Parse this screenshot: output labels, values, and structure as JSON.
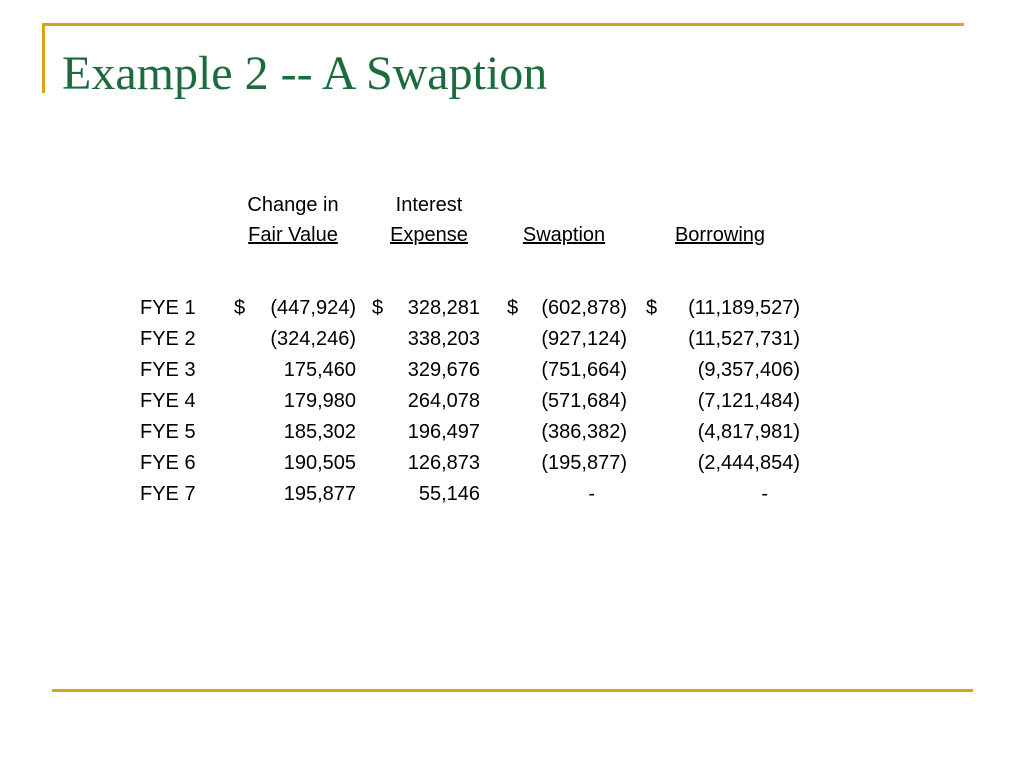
{
  "slide": {
    "title": "Example 2 -- A Swaption"
  },
  "table": {
    "headers": [
      {
        "line1": "Change in",
        "line2": "Fair Value"
      },
      {
        "line1": "Interest",
        "line2": "Expense"
      },
      {
        "line1": "",
        "line2": "Swaption"
      },
      {
        "line1": "",
        "line2": "Borrowing"
      }
    ],
    "currency_symbol": "$",
    "rows": [
      {
        "label": "FYE 1",
        "fair_value": "(447,924)",
        "interest_expense": "328,281",
        "swaption": "(602,878)",
        "borrowing": "(11,189,527)"
      },
      {
        "label": "FYE 2",
        "fair_value": "(324,246)",
        "interest_expense": "338,203",
        "swaption": "(927,124)",
        "borrowing": "(11,527,731)"
      },
      {
        "label": "FYE 3",
        "fair_value": "175,460",
        "interest_expense": "329,676",
        "swaption": "(751,664)",
        "borrowing": "(9,357,406)"
      },
      {
        "label": "FYE 4",
        "fair_value": "179,980",
        "interest_expense": "264,078",
        "swaption": "(571,684)",
        "borrowing": "(7,121,484)"
      },
      {
        "label": "FYE 5",
        "fair_value": "185,302",
        "interest_expense": "196,497",
        "swaption": "(386,382)",
        "borrowing": "(4,817,981)"
      },
      {
        "label": "FYE 6",
        "fair_value": "190,505",
        "interest_expense": "126,873",
        "swaption": "(195,877)",
        "borrowing": "(2,444,854)"
      },
      {
        "label": "FYE 7",
        "fair_value": "195,877",
        "interest_expense": "55,146",
        "swaption": "-",
        "borrowing": "-"
      }
    ]
  },
  "colors": {
    "title": "#1c6b3c",
    "accent_lines": "#d9a21b"
  }
}
